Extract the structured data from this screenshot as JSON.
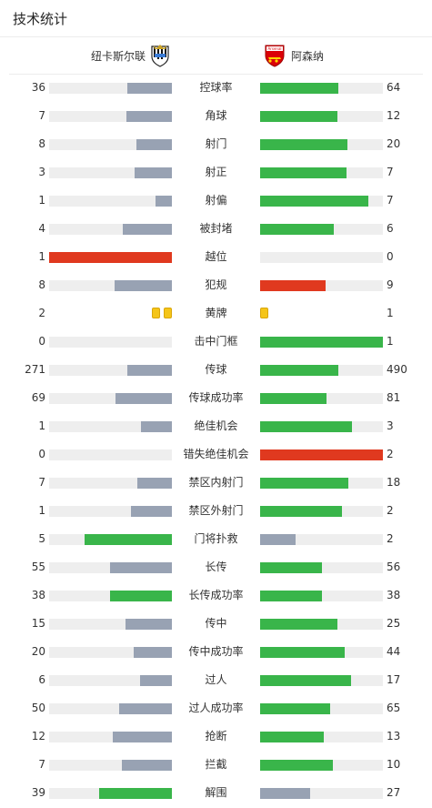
{
  "header": {
    "title": "技术统计"
  },
  "teams": {
    "home": {
      "name": "纽卡斯尔联"
    },
    "away": {
      "name": "阿森纳",
      "crest_text": "Arsenal"
    }
  },
  "colors": {
    "grey": "#98a2b3",
    "green": "#39b54a",
    "red": "#e0391f",
    "track": "#eeeeee",
    "card_yellow": "#f5c518"
  },
  "stats": [
    {
      "label": "控球率",
      "home": "36",
      "away": "64",
      "home_pct": 0.36,
      "away_pct": 0.64,
      "home_color": "grey",
      "away_color": "green"
    },
    {
      "label": "角球",
      "home": "7",
      "away": "12",
      "home_pct": 0.37,
      "away_pct": 0.63,
      "home_color": "grey",
      "away_color": "green"
    },
    {
      "label": "射门",
      "home": "8",
      "away": "20",
      "home_pct": 0.29,
      "away_pct": 0.71,
      "home_color": "grey",
      "away_color": "green"
    },
    {
      "label": "射正",
      "home": "3",
      "away": "7",
      "home_pct": 0.3,
      "away_pct": 0.7,
      "home_color": "grey",
      "away_color": "green"
    },
    {
      "label": "射偏",
      "home": "1",
      "away": "7",
      "home_pct": 0.13,
      "away_pct": 0.88,
      "home_color": "grey",
      "away_color": "green"
    },
    {
      "label": "被封堵",
      "home": "4",
      "away": "6",
      "home_pct": 0.4,
      "away_pct": 0.6,
      "home_color": "grey",
      "away_color": "green"
    },
    {
      "label": "越位",
      "home": "1",
      "away": "0",
      "home_pct": 1.0,
      "away_pct": 0.0,
      "home_color": "red",
      "away_color": "green"
    },
    {
      "label": "犯规",
      "home": "8",
      "away": "9",
      "home_pct": 0.47,
      "away_pct": 0.53,
      "home_color": "grey",
      "away_color": "red"
    },
    {
      "label": "黄牌",
      "home": "2",
      "away": "1",
      "home_cards": 2,
      "away_cards": 1
    },
    {
      "label": "击中门框",
      "home": "0",
      "away": "1",
      "home_pct": 0.0,
      "away_pct": 1.0,
      "home_color": "grey",
      "away_color": "green"
    },
    {
      "label": "传球",
      "home": "271",
      "away": "490",
      "home_pct": 0.36,
      "away_pct": 0.64,
      "home_color": "grey",
      "away_color": "green"
    },
    {
      "label": "传球成功率",
      "home": "69",
      "away": "81",
      "home_pct": 0.46,
      "away_pct": 0.54,
      "home_color": "grey",
      "away_color": "green"
    },
    {
      "label": "绝佳机会",
      "home": "1",
      "away": "3",
      "home_pct": 0.25,
      "away_pct": 0.75,
      "home_color": "grey",
      "away_color": "green"
    },
    {
      "label": "错失绝佳机会",
      "home": "0",
      "away": "2",
      "home_pct": 0.0,
      "away_pct": 1.0,
      "home_color": "grey",
      "away_color": "red"
    },
    {
      "label": "禁区内射门",
      "home": "7",
      "away": "18",
      "home_pct": 0.28,
      "away_pct": 0.72,
      "home_color": "grey",
      "away_color": "green"
    },
    {
      "label": "禁区外射门",
      "home": "1",
      "away": "2",
      "home_pct": 0.33,
      "away_pct": 0.67,
      "home_color": "grey",
      "away_color": "green"
    },
    {
      "label": "门将扑救",
      "home": "5",
      "away": "2",
      "home_pct": 0.71,
      "away_pct": 0.29,
      "home_color": "green",
      "away_color": "grey"
    },
    {
      "label": "长传",
      "home": "55",
      "away": "56",
      "home_pct": 0.5,
      "away_pct": 0.5,
      "home_color": "grey",
      "away_color": "green"
    },
    {
      "label": "长传成功率",
      "home": "38",
      "away": "38",
      "home_pct": 0.5,
      "away_pct": 0.5,
      "home_color": "green",
      "away_color": "green"
    },
    {
      "label": "传中",
      "home": "15",
      "away": "25",
      "home_pct": 0.38,
      "away_pct": 0.63,
      "home_color": "grey",
      "away_color": "green"
    },
    {
      "label": "传中成功率",
      "home": "20",
      "away": "44",
      "home_pct": 0.31,
      "away_pct": 0.69,
      "home_color": "grey",
      "away_color": "green"
    },
    {
      "label": "过人",
      "home": "6",
      "away": "17",
      "home_pct": 0.26,
      "away_pct": 0.74,
      "home_color": "grey",
      "away_color": "green"
    },
    {
      "label": "过人成功率",
      "home": "50",
      "away": "65",
      "home_pct": 0.43,
      "away_pct": 0.57,
      "home_color": "grey",
      "away_color": "green"
    },
    {
      "label": "抢断",
      "home": "12",
      "away": "13",
      "home_pct": 0.48,
      "away_pct": 0.52,
      "home_color": "grey",
      "away_color": "green"
    },
    {
      "label": "拦截",
      "home": "7",
      "away": "10",
      "home_pct": 0.41,
      "away_pct": 0.59,
      "home_color": "grey",
      "away_color": "green"
    },
    {
      "label": "解围",
      "home": "39",
      "away": "27",
      "home_pct": 0.59,
      "away_pct": 0.41,
      "home_color": "green",
      "away_color": "grey"
    }
  ]
}
